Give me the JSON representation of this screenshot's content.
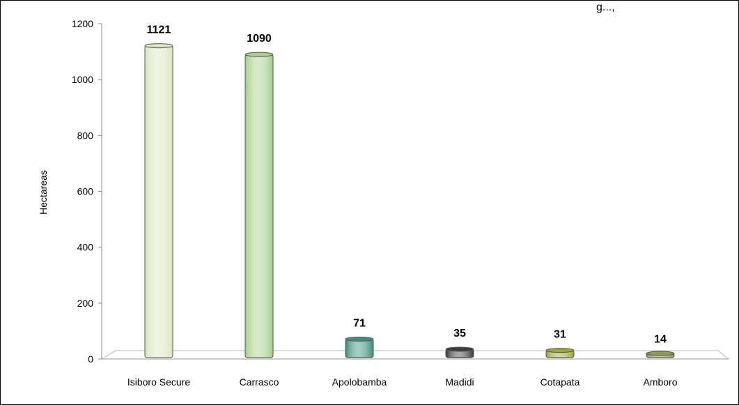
{
  "chart_data": {
    "type": "bar",
    "title_fragment": "g...,",
    "ylabel": "Hectareas",
    "xlabel": "",
    "ylim": [
      0,
      1200
    ],
    "yticks": [
      0,
      200,
      400,
      600,
      800,
      1000,
      1200
    ],
    "grid": false,
    "categories": [
      "Isiboro Secure",
      "Carrasco",
      "Apolobamba",
      "Madidi",
      "Cotapata",
      "Amboro"
    ],
    "values": [
      1121,
      1090,
      71,
      35,
      31,
      14
    ],
    "data_labels": [
      "1121",
      "1090",
      "71",
      "35",
      "31",
      "14"
    ],
    "colors": [
      "#d9e8bf",
      "#a8cf8c",
      "#3f8f7e",
      "#3d3d3d",
      "#9aa83a",
      "#8f9a4a"
    ]
  }
}
